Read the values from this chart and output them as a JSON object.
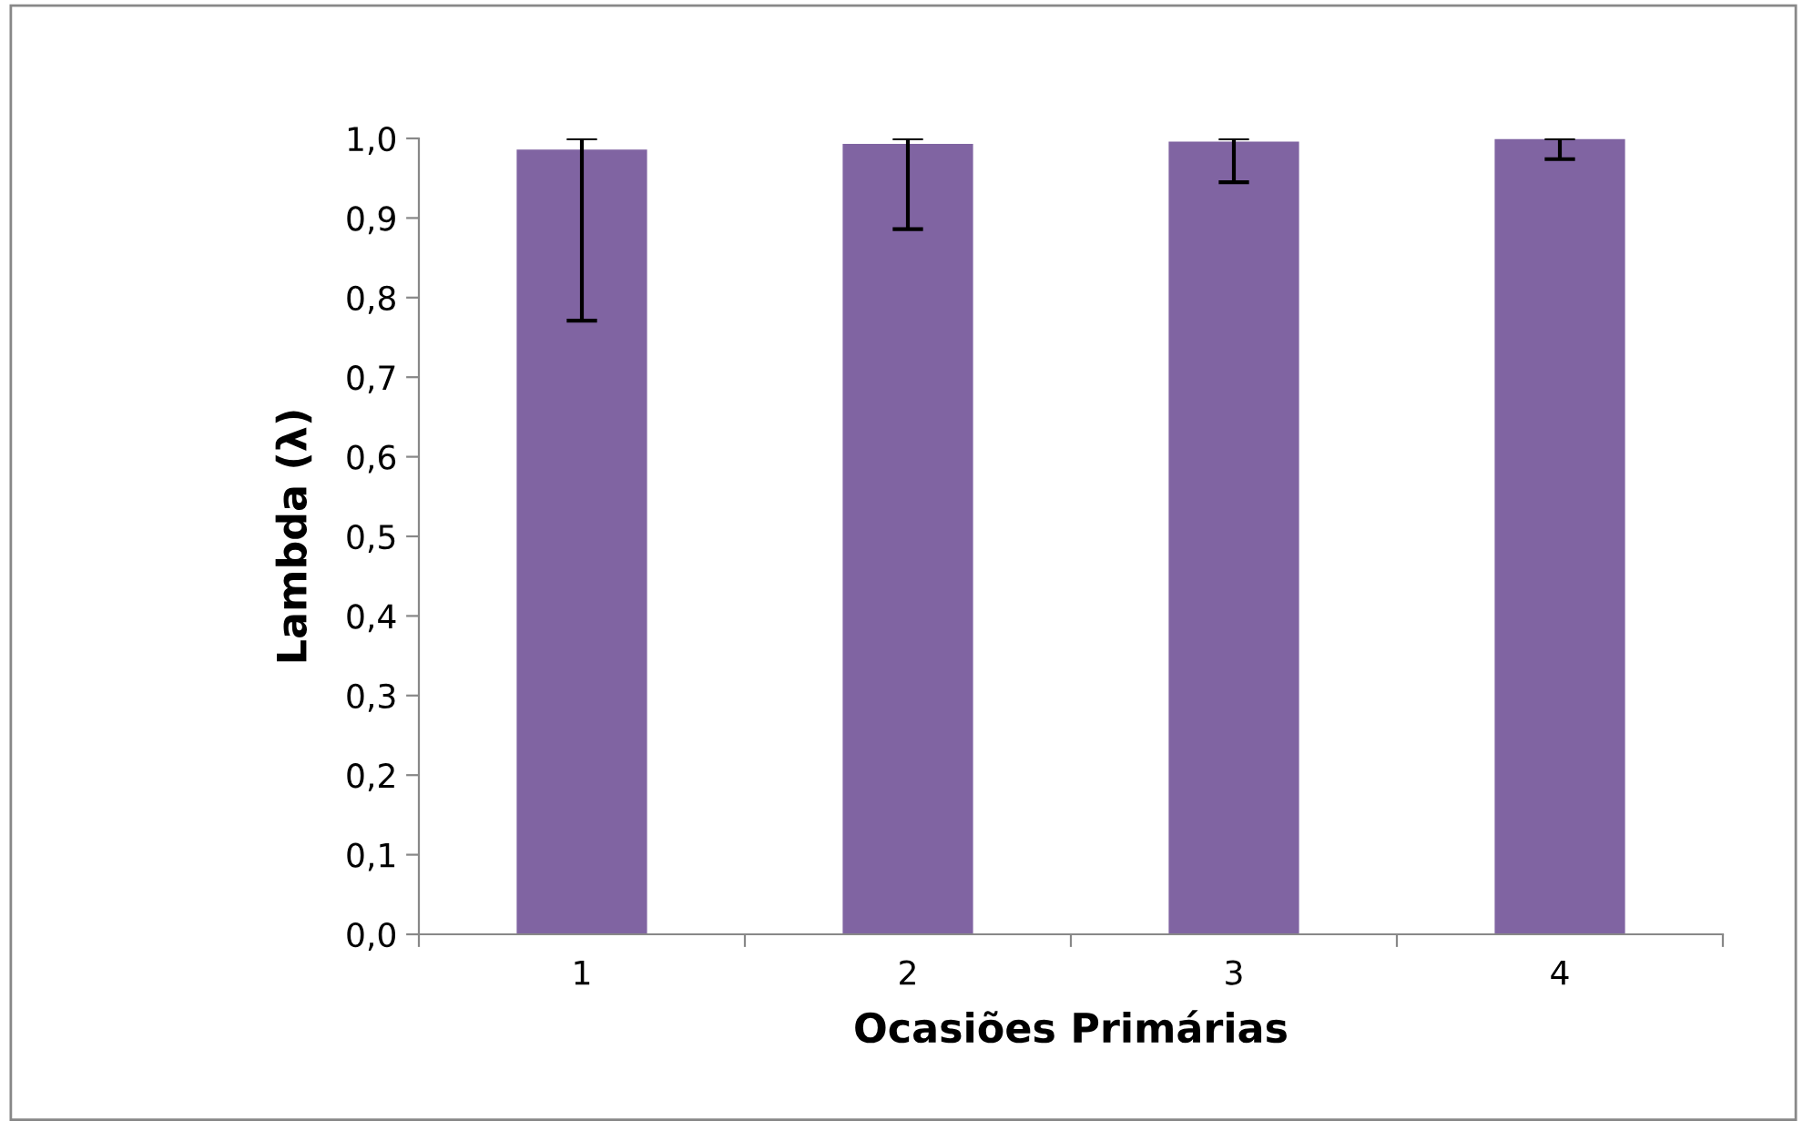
{
  "chart_data": {
    "type": "bar",
    "xlabel": "Ocasiões Primárias",
    "ylabel": "Lambda (λ)",
    "categories": [
      "1",
      "2",
      "3",
      "4"
    ],
    "values": [
      0.986,
      0.993,
      0.996,
      0.999
    ],
    "errors": [
      [
        0.771,
        1.0
      ],
      [
        0.886,
        1.0
      ],
      [
        0.945,
        1.0
      ],
      [
        0.974,
        1.0
      ]
    ],
    "color": "#8064a2",
    "ylim": [
      0,
      1.0
    ],
    "yticks": [
      {
        "value": 0,
        "label": "0,0"
      },
      {
        "value": 0.1,
        "label": "0,1"
      },
      {
        "value": 0.2,
        "label": "0,2"
      },
      {
        "value": 0.3,
        "label": "0,3"
      },
      {
        "value": 0.4,
        "label": "0,4"
      },
      {
        "value": 0.5,
        "label": "0,5"
      },
      {
        "value": 0.6,
        "label": "0,6"
      },
      {
        "value": 0.7,
        "label": "0,7"
      },
      {
        "value": 0.8,
        "label": "0,8"
      },
      {
        "value": 0.9,
        "label": "0,9"
      },
      {
        "value": 1.0,
        "label": "1,0"
      }
    ],
    "grid": false,
    "legend": false
  }
}
